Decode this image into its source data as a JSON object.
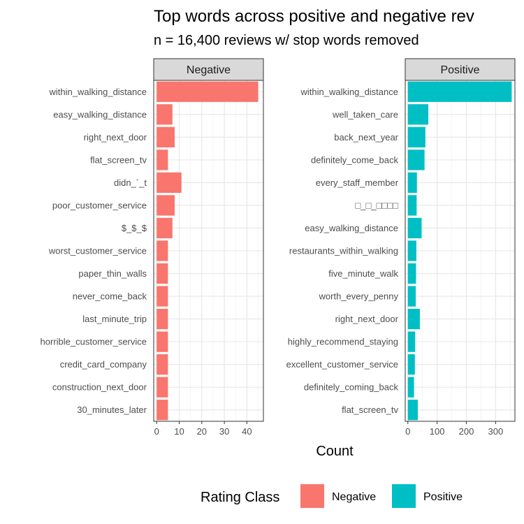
{
  "chart_data": {
    "type": "bar",
    "title": "Top words across positive and negative rev",
    "subtitle": "n = 16,400 reviews w/ stop words removed",
    "xlabel": "Count",
    "legend": {
      "title": "Rating Class",
      "position": "bottom",
      "entries": [
        "Negative",
        "Positive"
      ]
    },
    "grid": true,
    "colors": {
      "Negative": "#F8766D",
      "Positive": "#00BFC4"
    },
    "facets": [
      {
        "name": "Negative",
        "xlim": [
          -1.3,
          47.3
        ],
        "ticks": [
          0,
          10,
          20,
          30,
          40
        ],
        "categories": [
          "within_walking_distance",
          "easy_walking_distance",
          "right_next_door",
          "flat_screen_tv",
          "didn_´_t",
          "poor_customer_service",
          "$_$_$",
          "worst_customer_service",
          "paper_thin_walls",
          "never_come_back",
          "last_minute_trip",
          "horrible_customer_service",
          "credit_card_company",
          "construction_next_door",
          "30_minutes_later"
        ],
        "values": [
          45,
          7,
          8,
          5,
          11,
          8,
          7,
          5,
          5,
          5,
          5,
          5,
          5,
          5,
          5
        ]
      },
      {
        "name": "Positive",
        "xlim": [
          -9,
          366
        ],
        "ticks": [
          0,
          100,
          200,
          300
        ],
        "categories": [
          "within_walking_distance",
          "well_taken_care",
          "back_next_year",
          "definitely_come_back",
          "every_staff_member",
          "□_□_□□□□",
          "easy_walking_distance",
          "restaurants_within_walking",
          "five_minute_walk",
          "worth_every_penny",
          "right_next_door",
          "highly_recommend_staying",
          "excellent_customer_service",
          "definitely_coming_back",
          "flat_screen_tv"
        ],
        "values": [
          355,
          70,
          60,
          57,
          31,
          30,
          47,
          29,
          28,
          27,
          41,
          25,
          24,
          21,
          34
        ]
      }
    ]
  }
}
